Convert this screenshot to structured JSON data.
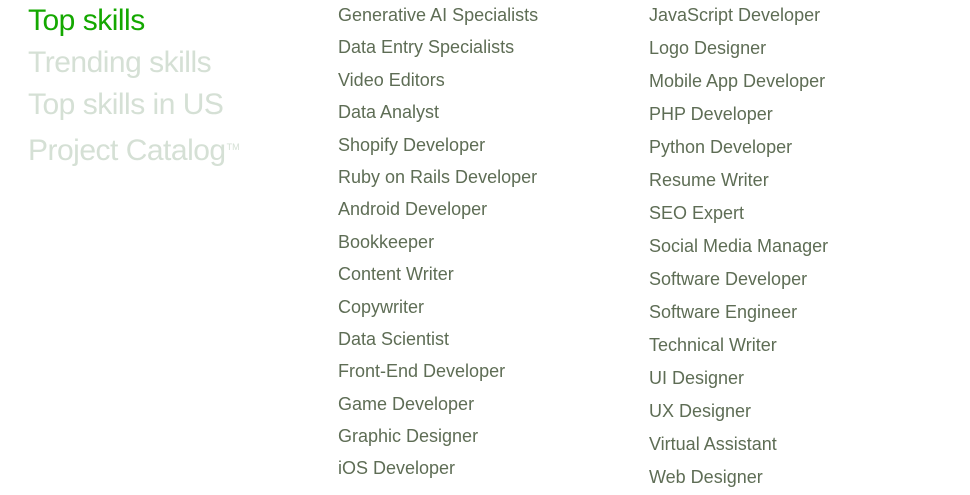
{
  "tabs": [
    {
      "label": "Top skills",
      "active": true
    },
    {
      "label": "Trending skills",
      "active": false
    },
    {
      "label": "Top skills in US",
      "active": false
    },
    {
      "label": "Project Catalog",
      "active": false,
      "suffix": "TM"
    }
  ],
  "skills_column_1": [
    "Generative AI Specialists",
    "Data Entry Specialists",
    "Video Editors",
    "Data Analyst",
    "Shopify Developer",
    "Ruby on Rails Developer",
    "Android Developer",
    "Bookkeeper",
    "Content Writer",
    "Copywriter",
    "Data Scientist",
    "Front-End Developer",
    "Game Developer",
    "Graphic Designer",
    "iOS Developer"
  ],
  "skills_column_2": [
    "JavaScript Developer",
    "Logo Designer",
    "Mobile App Developer",
    "PHP Developer",
    "Python Developer",
    "Resume Writer",
    "SEO Expert",
    "Social Media Manager",
    "Software Developer",
    "Software Engineer",
    "Technical Writer",
    "UI Designer",
    "UX Designer",
    "Virtual Assistant",
    "Web Designer"
  ],
  "colors": {
    "active_tab": "#14a800",
    "inactive_tab": "#d5e0d5",
    "link_text": "#5e6d55"
  }
}
